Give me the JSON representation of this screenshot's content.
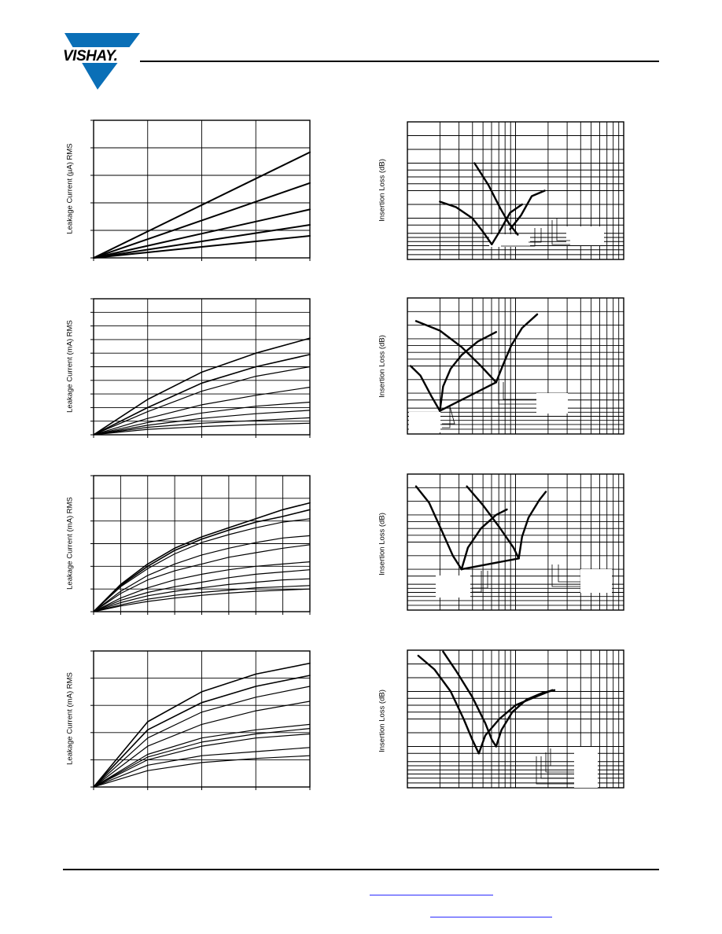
{
  "header": {
    "brand": "VISHAY."
  },
  "colors": {
    "link": "#2b2bff",
    "logo_blue": "#0a6fb7"
  },
  "chart_data": [
    {
      "type": "line",
      "ylabel": "Leakage Current (µA) RMS",
      "x": [
        0,
        1,
        2,
        3,
        4
      ],
      "ylim": [
        0,
        5
      ],
      "series": [
        {
          "values": [
            0,
            0.96,
            1.92,
            2.88,
            3.84
          ]
        },
        {
          "values": [
            0,
            0.68,
            1.36,
            2.04,
            2.72
          ]
        },
        {
          "values": [
            0,
            0.44,
            0.88,
            1.32,
            1.76
          ]
        },
        {
          "values": [
            0,
            0.3,
            0.6,
            0.9,
            1.2
          ]
        },
        {
          "values": [
            0,
            0.2,
            0.4,
            0.6,
            0.8
          ]
        }
      ]
    },
    {
      "type": "line",
      "ylabel": "Leakage Current (mA) RMS",
      "x": [
        0,
        1,
        2,
        3,
        4
      ],
      "ylim": [
        0,
        10
      ],
      "series": [
        {
          "values": [
            0,
            2.6,
            4.6,
            6.0,
            7.1
          ]
        },
        {
          "values": [
            0,
            2.0,
            3.8,
            5.0,
            5.9
          ]
        },
        {
          "values": [
            0,
            1.7,
            3.2,
            4.3,
            5.0
          ]
        },
        {
          "values": [
            0,
            1.2,
            2.2,
            2.9,
            3.5
          ]
        },
        {
          "values": [
            0,
            0.9,
            1.6,
            2.1,
            2.4
          ]
        },
        {
          "values": [
            0,
            0.7,
            1.2,
            1.55,
            1.8
          ]
        },
        {
          "values": [
            0,
            0.55,
            0.85,
            1.05,
            1.25
          ]
        },
        {
          "values": [
            0,
            0.4,
            0.6,
            0.75,
            0.85
          ]
        }
      ]
    },
    {
      "type": "line",
      "ylabel": "Leakage Current (mA) RMS",
      "x": [
        0,
        1,
        2,
        3,
        4,
        5,
        6,
        7,
        8
      ],
      "ylim": [
        0,
        6
      ],
      "series": [
        {
          "values": [
            0,
            1.2,
            2.1,
            2.8,
            3.3,
            3.7,
            4.1,
            4.5,
            4.8
          ]
        },
        {
          "values": [
            0,
            1.15,
            2.0,
            2.7,
            3.2,
            3.6,
            3.95,
            4.2,
            4.5
          ]
        },
        {
          "values": [
            0,
            1.1,
            1.9,
            2.55,
            3.05,
            3.4,
            3.7,
            3.95,
            4.1
          ]
        },
        {
          "values": [
            0,
            0.9,
            1.6,
            2.1,
            2.5,
            2.8,
            3.05,
            3.25,
            3.35
          ]
        },
        {
          "values": [
            0,
            0.8,
            1.4,
            1.8,
            2.1,
            2.4,
            2.6,
            2.8,
            2.95
          ]
        },
        {
          "values": [
            0,
            0.6,
            1.05,
            1.4,
            1.65,
            1.85,
            2.0,
            2.1,
            2.2
          ]
        },
        {
          "values": [
            0,
            0.5,
            0.85,
            1.1,
            1.3,
            1.5,
            1.65,
            1.75,
            1.85
          ]
        },
        {
          "values": [
            0,
            0.4,
            0.7,
            0.9,
            1.05,
            1.2,
            1.3,
            1.4,
            1.45
          ]
        },
        {
          "values": [
            0,
            0.3,
            0.55,
            0.72,
            0.85,
            0.95,
            1.05,
            1.1,
            1.15
          ]
        },
        {
          "values": [
            0,
            0.25,
            0.45,
            0.6,
            0.72,
            0.82,
            0.9,
            0.95,
            1.0
          ]
        }
      ]
    },
    {
      "type": "line",
      "ylabel": "Leakage Current (mA) RMS",
      "x": [
        0,
        1,
        2,
        3,
        4
      ],
      "ylim": [
        0,
        5
      ],
      "series": [
        {
          "values": [
            0,
            2.4,
            3.5,
            4.15,
            4.55
          ]
        },
        {
          "values": [
            0,
            2.1,
            3.1,
            3.7,
            4.1
          ]
        },
        {
          "values": [
            0,
            1.8,
            2.75,
            3.3,
            3.7
          ]
        },
        {
          "values": [
            0,
            1.5,
            2.3,
            2.8,
            3.15
          ]
        },
        {
          "values": [
            0,
            1.2,
            1.8,
            2.1,
            2.3
          ]
        },
        {
          "values": [
            0,
            1.1,
            1.65,
            1.95,
            2.15
          ]
        },
        {
          "values": [
            0,
            1.0,
            1.5,
            1.8,
            1.95
          ]
        },
        {
          "values": [
            0,
            0.8,
            1.15,
            1.3,
            1.45
          ]
        },
        {
          "values": [
            0,
            0.6,
            0.9,
            1.05,
            1.15
          ]
        }
      ]
    },
    {
      "type": "line",
      "ylabel": "Insertion Loss (dB)",
      "x_log_decades": [
        0,
        2
      ],
      "ylim": [
        0,
        10
      ],
      "series": [
        {
          "points": [
            [
              0.62,
              7.0
            ],
            [
              0.75,
              5.4
            ],
            [
              0.86,
              3.7
            ],
            [
              0.94,
              2.6
            ],
            [
              1.02,
              1.8
            ]
          ]
        },
        {
          "points": [
            [
              0.3,
              4.2
            ],
            [
              0.45,
              3.8
            ],
            [
              0.6,
              3.0
            ],
            [
              0.7,
              2.0
            ],
            [
              0.78,
              1.1
            ]
          ]
        },
        {
          "points": [
            [
              0.85,
              2.0
            ],
            [
              0.95,
              3.4
            ],
            [
              1.06,
              4.0
            ]
          ]
        },
        {
          "points": [
            [
              0.95,
              2.2
            ],
            [
              1.05,
              3.2
            ],
            [
              1.15,
              4.6
            ],
            [
              1.27,
              5.0
            ]
          ]
        },
        {
          "points": [
            [
              0.78,
              1.1
            ],
            [
              0.85,
              2.0
            ]
          ]
        }
      ]
    },
    {
      "type": "line",
      "ylabel": "Insertion Loss (dB)",
      "x_log_decades": [
        0,
        2
      ],
      "ylim": [
        0,
        10
      ],
      "series": [
        {
          "points": [
            [
              0.08,
              8.3
            ],
            [
              0.3,
              7.6
            ],
            [
              0.5,
              6.4
            ],
            [
              0.68,
              5.0
            ],
            [
              0.82,
              3.8
            ]
          ]
        },
        {
          "points": [
            [
              0.03,
              5.0
            ],
            [
              0.12,
              4.3
            ],
            [
              0.22,
              2.8
            ],
            [
              0.3,
              1.7
            ]
          ]
        },
        {
          "points": [
            [
              0.3,
              1.7
            ],
            [
              0.33,
              3.5
            ],
            [
              0.4,
              4.8
            ],
            [
              0.5,
              5.8
            ],
            [
              0.65,
              6.8
            ],
            [
              0.82,
              7.5
            ]
          ]
        },
        {
          "points": [
            [
              0.82,
              3.8
            ],
            [
              0.88,
              5.0
            ],
            [
              0.96,
              6.5
            ],
            [
              1.06,
              7.8
            ],
            [
              1.2,
              8.8
            ]
          ]
        },
        {
          "points": [
            [
              0.3,
              1.7
            ],
            [
              0.82,
              3.8
            ]
          ]
        }
      ]
    },
    {
      "type": "line",
      "ylabel": "Insertion Loss (dB)",
      "x_log_decades": [
        0,
        2
      ],
      "ylim": [
        0,
        10
      ],
      "series": [
        {
          "points": [
            [
              0.08,
              9.1
            ],
            [
              0.2,
              7.9
            ],
            [
              0.32,
              5.8
            ],
            [
              0.42,
              4.0
            ],
            [
              0.5,
              3.0
            ]
          ]
        },
        {
          "points": [
            [
              0.5,
              3.0
            ],
            [
              0.56,
              4.6
            ],
            [
              0.68,
              6.0
            ],
            [
              0.82,
              7.0
            ],
            [
              0.92,
              7.4
            ]
          ]
        },
        {
          "points": [
            [
              0.55,
              9.1
            ],
            [
              0.7,
              7.7
            ],
            [
              0.85,
              6.1
            ],
            [
              0.98,
              4.6
            ],
            [
              1.03,
              3.8
            ]
          ]
        },
        {
          "points": [
            [
              1.03,
              3.8
            ],
            [
              1.06,
              5.4
            ],
            [
              1.12,
              6.8
            ],
            [
              1.22,
              8.1
            ],
            [
              1.28,
              8.7
            ]
          ]
        },
        {
          "points": [
            [
              0.5,
              3.0
            ],
            [
              1.03,
              3.8
            ]
          ]
        }
      ]
    },
    {
      "type": "line",
      "ylabel": "Insertion Loss (dB)",
      "x_log_decades": [
        0,
        2
      ],
      "ylim": [
        0,
        10
      ],
      "series": [
        {
          "points": [
            [
              0.1,
              9.6
            ],
            [
              0.25,
              8.6
            ],
            [
              0.4,
              7.0
            ],
            [
              0.52,
              5.0
            ],
            [
              0.6,
              3.5
            ],
            [
              0.66,
              2.5
            ]
          ]
        },
        {
          "points": [
            [
              0.33,
              9.9
            ],
            [
              0.45,
              8.5
            ],
            [
              0.6,
              6.6
            ],
            [
              0.72,
              4.7
            ],
            [
              0.78,
              3.5
            ],
            [
              0.82,
              3.0
            ]
          ]
        },
        {
          "points": [
            [
              0.66,
              2.5
            ],
            [
              0.72,
              3.8
            ],
            [
              0.85,
              5.0
            ],
            [
              1.0,
              6.0
            ],
            [
              1.15,
              6.5
            ],
            [
              1.34,
              7.1
            ]
          ]
        },
        {
          "points": [
            [
              0.82,
              3.0
            ],
            [
              0.87,
              4.2
            ],
            [
              0.97,
              5.5
            ],
            [
              1.1,
              6.4
            ],
            [
              1.25,
              6.9
            ],
            [
              1.36,
              7.1
            ]
          ]
        }
      ]
    }
  ]
}
